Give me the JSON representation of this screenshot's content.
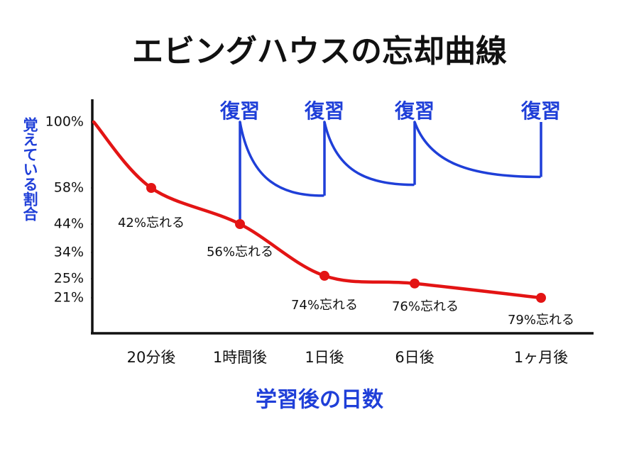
{
  "chart_data": {
    "type": "line",
    "title": "エビングハウスの忘却曲線",
    "x_label": "学習後の日数",
    "y_label": "覚えている割合",
    "categories": [
      null,
      "20分後",
      "1時間後",
      "1日後",
      "6日後",
      "1ヶ月後"
    ],
    "values": [
      100,
      58,
      44,
      26,
      24,
      21
    ],
    "color": "#e31414",
    "annotations": [
      null,
      "42%忘れる",
      "56%忘れる",
      "74%忘れる",
      "76%忘れる",
      "79%忘れる"
    ],
    "ylim": [
      0,
      110
    ],
    "yticks": [
      {
        "value": 100,
        "label": "100%"
      },
      {
        "value": 58,
        "label": "58%"
      },
      {
        "value": 44,
        "label": "44%"
      },
      {
        "value": 34,
        "label": "34%"
      },
      {
        "value": 25,
        "label": "25%"
      },
      {
        "value": 21,
        "label": "21%"
      }
    ],
    "grid": false,
    "review": {
      "color": "#1f3fd8",
      "labels": [
        null,
        null,
        "復習",
        "復習",
        "復習",
        "復習"
      ],
      "before": [
        null,
        null,
        44,
        55,
        60,
        65
      ],
      "after": [
        null,
        null,
        100,
        100,
        100,
        100
      ]
    }
  }
}
